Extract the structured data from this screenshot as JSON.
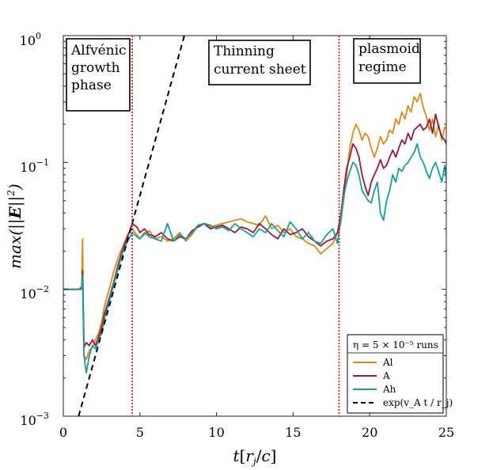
{
  "chart_data": {
    "type": "line",
    "xlabel": "t[r_j/c]",
    "ylabel": "max(||E||^2)",
    "xlim": [
      0,
      25
    ],
    "ylim_log10": [
      -3,
      0
    ],
    "yscale": "log",
    "x_ticks": [
      0,
      5,
      10,
      15,
      20,
      25
    ],
    "x_tick_labels": [
      "0",
      "5",
      "10",
      "15",
      "20",
      "25"
    ],
    "y_tick_values": [
      0.001,
      0.01,
      0.1,
      1
    ],
    "y_tick_mantissa": "10",
    "y_tick_exponents": [
      "−3",
      "−2",
      "−1",
      "0"
    ],
    "phase_lines": [
      4.5,
      18
    ],
    "annotations": [
      {
        "lines": [
          "Alfvénic",
          "growth",
          "phase"
        ]
      },
      {
        "lines": [
          "Thinning",
          "current sheet"
        ]
      },
      {
        "lines": [
          "plasmoid",
          "regime"
        ]
      }
    ],
    "legend_title": "η = 5 × 10⁻⁵ runs",
    "legend_exp_label": "exp(v_A t / r_j)",
    "series": [
      {
        "name": "Al",
        "color": "#D98A1C",
        "x": [
          0,
          0.5,
          1.0,
          1.2,
          1.26,
          1.3,
          1.35,
          1.5,
          1.7,
          1.9,
          2.1,
          2.3,
          2.5,
          2.7,
          3.0,
          3.3,
          3.6,
          3.9,
          4.2,
          4.5,
          4.8,
          5.0,
          5.3,
          5.6,
          6.0,
          6.4,
          6.8,
          7.2,
          7.6,
          8.0,
          8.4,
          8.8,
          9.2,
          9.6,
          10.0,
          10.4,
          10.8,
          11.2,
          11.6,
          12.0,
          12.4,
          12.8,
          13.2,
          13.6,
          14.0,
          14.4,
          14.8,
          15.2,
          15.6,
          16.0,
          16.4,
          16.8,
          17.2,
          17.6,
          17.9,
          18.1,
          18.3,
          18.5,
          18.7,
          18.9,
          19.1,
          19.3,
          19.5,
          19.7,
          19.9,
          20.1,
          20.3,
          20.5,
          20.7,
          20.9,
          21.1,
          21.3,
          21.5,
          21.7,
          21.9,
          22.1,
          22.3,
          22.5,
          22.7,
          22.9,
          23.1,
          23.3,
          23.5,
          23.7,
          23.9,
          24.1,
          24.3,
          24.5,
          24.7,
          24.9,
          25.0
        ],
        "y": [
          0.01,
          0.01,
          0.01,
          0.0105,
          0.025,
          0.007,
          0.003,
          0.0028,
          0.0033,
          0.0035,
          0.004,
          0.0045,
          0.0055,
          0.0075,
          0.01,
          0.014,
          0.018,
          0.022,
          0.027,
          0.03,
          0.027,
          0.025,
          0.027,
          0.029,
          0.025,
          0.026,
          0.024,
          0.025,
          0.028,
          0.024,
          0.027,
          0.032,
          0.033,
          0.031,
          0.032,
          0.033,
          0.034,
          0.035,
          0.036,
          0.034,
          0.033,
          0.032,
          0.038,
          0.03,
          0.032,
          0.028,
          0.03,
          0.026,
          0.025,
          0.023,
          0.022,
          0.019,
          0.021,
          0.023,
          0.028,
          0.033,
          0.05,
          0.08,
          0.13,
          0.17,
          0.2,
          0.18,
          0.15,
          0.17,
          0.16,
          0.13,
          0.11,
          0.13,
          0.16,
          0.14,
          0.15,
          0.18,
          0.17,
          0.22,
          0.2,
          0.25,
          0.22,
          0.28,
          0.25,
          0.33,
          0.3,
          0.35,
          0.27,
          0.23,
          0.18,
          0.22,
          0.16,
          0.2,
          0.15,
          0.19,
          0.18
        ]
      },
      {
        "name": "A",
        "color": "#97193F",
        "x": [
          0,
          0.5,
          1.0,
          1.2,
          1.26,
          1.3,
          1.35,
          1.5,
          1.7,
          1.9,
          2.1,
          2.3,
          2.5,
          2.7,
          3.0,
          3.3,
          3.6,
          3.9,
          4.2,
          4.5,
          4.8,
          5.0,
          5.3,
          5.6,
          6.0,
          6.4,
          6.8,
          7.2,
          7.6,
          8.0,
          8.4,
          8.8,
          9.2,
          9.6,
          10.0,
          10.4,
          10.8,
          11.2,
          11.6,
          12.0,
          12.4,
          12.8,
          13.2,
          13.6,
          14.0,
          14.4,
          14.8,
          15.2,
          15.6,
          16.0,
          16.4,
          16.8,
          17.2,
          17.6,
          17.9,
          18.1,
          18.3,
          18.5,
          18.7,
          18.9,
          19.1,
          19.3,
          19.5,
          19.7,
          19.9,
          20.1,
          20.3,
          20.5,
          20.7,
          20.9,
          21.1,
          21.3,
          21.5,
          21.7,
          21.9,
          22.1,
          22.3,
          22.5,
          22.7,
          22.9,
          23.1,
          23.3,
          23.5,
          23.7,
          23.9,
          24.1,
          24.3,
          24.5,
          24.7,
          24.9,
          25.0
        ],
        "y": [
          0.01,
          0.01,
          0.01,
          0.0102,
          0.014,
          0.008,
          0.0035,
          0.0038,
          0.0036,
          0.004,
          0.0036,
          0.0042,
          0.005,
          0.0065,
          0.0085,
          0.0115,
          0.016,
          0.021,
          0.026,
          0.033,
          0.031,
          0.028,
          0.03,
          0.027,
          0.026,
          0.028,
          0.025,
          0.024,
          0.026,
          0.025,
          0.029,
          0.031,
          0.033,
          0.03,
          0.031,
          0.032,
          0.03,
          0.028,
          0.031,
          0.03,
          0.028,
          0.033,
          0.03,
          0.027,
          0.025,
          0.03,
          0.027,
          0.028,
          0.03,
          0.026,
          0.024,
          0.022,
          0.024,
          0.025,
          0.028,
          0.038,
          0.06,
          0.09,
          0.11,
          0.14,
          0.13,
          0.11,
          0.08,
          0.065,
          0.055,
          0.07,
          0.08,
          0.09,
          0.105,
          0.09,
          0.095,
          0.11,
          0.125,
          0.11,
          0.13,
          0.15,
          0.14,
          0.17,
          0.15,
          0.18,
          0.19,
          0.2,
          0.18,
          0.19,
          0.22,
          0.17,
          0.24,
          0.19,
          0.16,
          0.15,
          0.14
        ]
      },
      {
        "name": "Ah",
        "color": "#1A9E9A",
        "x": [
          0,
          0.5,
          1.0,
          1.2,
          1.26,
          1.3,
          1.35,
          1.5,
          1.7,
          1.9,
          2.1,
          2.3,
          2.5,
          2.7,
          3.0,
          3.3,
          3.6,
          3.9,
          4.2,
          4.5,
          4.8,
          5.0,
          5.3,
          5.6,
          6.0,
          6.4,
          6.8,
          7.2,
          7.6,
          8.0,
          8.4,
          8.8,
          9.2,
          9.6,
          10.0,
          10.4,
          10.8,
          11.2,
          11.6,
          12.0,
          12.4,
          12.8,
          13.2,
          13.6,
          14.0,
          14.4,
          14.8,
          15.2,
          15.6,
          16.0,
          16.4,
          16.8,
          17.2,
          17.6,
          17.9,
          18.1,
          18.3,
          18.5,
          18.7,
          18.9,
          19.1,
          19.3,
          19.5,
          19.7,
          19.9,
          20.1,
          20.3,
          20.5,
          20.7,
          20.9,
          21.1,
          21.3,
          21.5,
          21.7,
          21.9,
          22.1,
          22.3,
          22.5,
          22.7,
          22.9,
          23.1,
          23.3,
          23.5,
          23.7,
          23.9,
          24.1,
          24.3,
          24.5,
          24.7,
          24.9,
          25.0
        ],
        "y": [
          0.01,
          0.01,
          0.01,
          0.01,
          0.013,
          0.006,
          0.003,
          0.0022,
          0.003,
          0.0036,
          0.0034,
          0.004,
          0.0045,
          0.006,
          0.008,
          0.011,
          0.015,
          0.02,
          0.024,
          0.028,
          0.026,
          0.025,
          0.028,
          0.026,
          0.025,
          0.024,
          0.033,
          0.024,
          0.027,
          0.025,
          0.028,
          0.032,
          0.033,
          0.032,
          0.03,
          0.031,
          0.029,
          0.033,
          0.03,
          0.028,
          0.026,
          0.03,
          0.028,
          0.033,
          0.029,
          0.026,
          0.034,
          0.03,
          0.025,
          0.028,
          0.024,
          0.023,
          0.027,
          0.03,
          0.023,
          0.035,
          0.055,
          0.07,
          0.085,
          0.1,
          0.095,
          0.08,
          0.06,
          0.055,
          0.05,
          0.048,
          0.06,
          0.07,
          0.04,
          0.035,
          0.05,
          0.06,
          0.08,
          0.07,
          0.09,
          0.085,
          0.095,
          0.1,
          0.11,
          0.12,
          0.14,
          0.11,
          0.1,
          0.085,
          0.075,
          0.09,
          0.1,
          0.085,
          0.07,
          0.095,
          0.07
        ]
      },
      {
        "name": "exp",
        "color": "#000000",
        "dashed": true,
        "x": [
          1.0,
          7.9
        ],
        "y": [
          0.001,
          1.0
        ]
      }
    ]
  }
}
